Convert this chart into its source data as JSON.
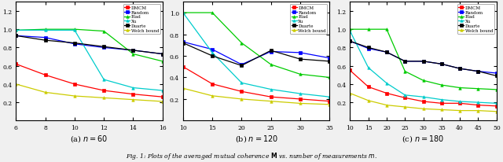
{
  "subplot_a": {
    "title": "(a) $n = 60$",
    "xlabel_vals": [
      6,
      8,
      10,
      12,
      14,
      16
    ],
    "xlim": [
      6,
      16
    ],
    "ylim": [
      0,
      1.3
    ],
    "yticks": [
      0.2,
      0.4,
      0.6,
      0.8,
      1.0,
      1.2
    ],
    "series": {
      "DMCM": {
        "x": [
          6,
          8,
          10,
          12,
          14,
          16
        ],
        "y": [
          0.62,
          0.5,
          0.4,
          0.33,
          0.29,
          0.26
        ],
        "color": "#ff0000",
        "marker": "s"
      },
      "Random": {
        "x": [
          6,
          8,
          10,
          12,
          14,
          16
        ],
        "y": [
          0.93,
          0.91,
          0.84,
          0.8,
          0.77,
          0.73
        ],
        "color": "#0000ff",
        "marker": "s"
      },
      "Elad": {
        "x": [
          6,
          8,
          10,
          12,
          14,
          16
        ],
        "y": [
          0.99,
          1.0,
          1.0,
          0.98,
          0.73,
          0.65
        ],
        "color": "#00cc00",
        "marker": "^"
      },
      "Xu": {
        "x": [
          6,
          8,
          10,
          12,
          14,
          16
        ],
        "y": [
          0.99,
          0.99,
          0.99,
          0.45,
          0.36,
          0.33
        ],
        "color": "#00cccc",
        "marker": "^"
      },
      "Duarte": {
        "x": [
          6,
          8,
          10,
          12,
          14,
          16
        ],
        "y": [
          0.93,
          0.88,
          0.85,
          0.81,
          0.77,
          0.73
        ],
        "color": "#000000",
        "marker": "s"
      },
      "Welch bound": {
        "x": [
          6,
          8,
          10,
          12,
          14,
          16
        ],
        "y": [
          0.4,
          0.31,
          0.27,
          0.25,
          0.23,
          0.21
        ],
        "color": "#cccc00",
        "marker": "^"
      }
    }
  },
  "subplot_b": {
    "title": "(b) $n = 120$",
    "xlabel_vals": [
      10,
      15,
      20,
      25,
      30,
      35
    ],
    "xlim": [
      10,
      35
    ],
    "ylim": [
      0,
      1.1
    ],
    "yticks": [
      0.2,
      0.4,
      0.6,
      0.8,
      1.0
    ],
    "series": {
      "DMCM": {
        "x": [
          10,
          15,
          20,
          25,
          30,
          35
        ],
        "y": [
          0.5,
          0.34,
          0.27,
          0.22,
          0.2,
          0.18
        ],
        "color": "#ff0000",
        "marker": "s"
      },
      "Random": {
        "x": [
          10,
          15,
          20,
          25,
          30,
          35
        ],
        "y": [
          0.73,
          0.66,
          0.52,
          0.64,
          0.63,
          0.58
        ],
        "color": "#0000ff",
        "marker": "s"
      },
      "Elad": {
        "x": [
          10,
          15,
          20,
          25,
          30,
          35
        ],
        "y": [
          1.0,
          1.0,
          0.72,
          0.52,
          0.43,
          0.4
        ],
        "color": "#00cc00",
        "marker": "^"
      },
      "Xu": {
        "x": [
          10,
          15,
          20,
          25,
          30,
          35
        ],
        "y": [
          1.0,
          0.63,
          0.35,
          0.29,
          0.25,
          0.22
        ],
        "color": "#00cccc",
        "marker": "^"
      },
      "Duarte": {
        "x": [
          10,
          15,
          20,
          25,
          30,
          35
        ],
        "y": [
          0.72,
          0.6,
          0.51,
          0.65,
          0.57,
          0.55
        ],
        "color": "#000000",
        "marker": "s"
      },
      "Welch bound": {
        "x": [
          10,
          15,
          20,
          25,
          30,
          35
        ],
        "y": [
          0.3,
          0.23,
          0.2,
          0.18,
          0.16,
          0.15
        ],
        "color": "#cccc00",
        "marker": "^"
      }
    }
  },
  "subplot_c": {
    "title": "(c) $n = 180$",
    "xlabel_vals": [
      10,
      15,
      20,
      25,
      30,
      35,
      40,
      45,
      50
    ],
    "xlim": [
      10,
      50
    ],
    "ylim": [
      0,
      1.3
    ],
    "yticks": [
      0.2,
      0.4,
      0.6,
      0.8,
      1.0,
      1.2
    ],
    "series": {
      "DMCM": {
        "x": [
          10,
          15,
          20,
          25,
          30,
          35,
          40,
          45,
          50
        ],
        "y": [
          0.55,
          0.37,
          0.3,
          0.25,
          0.21,
          0.19,
          0.19,
          0.17,
          0.16
        ],
        "color": "#ff0000",
        "marker": "s"
      },
      "Random": {
        "x": [
          10,
          15,
          20,
          25,
          30,
          35,
          40,
          45,
          50
        ],
        "y": [
          0.87,
          0.79,
          0.75,
          0.65,
          0.65,
          0.62,
          0.57,
          0.54,
          0.52
        ],
        "color": "#0000ff",
        "marker": "s"
      },
      "Elad": {
        "x": [
          10,
          15,
          20,
          25,
          30,
          35,
          40,
          45,
          50
        ],
        "y": [
          1.0,
          1.0,
          1.0,
          0.54,
          0.44,
          0.39,
          0.36,
          0.35,
          0.34
        ],
        "color": "#00cc00",
        "marker": "^"
      },
      "Xu": {
        "x": [
          10,
          15,
          20,
          25,
          30,
          35,
          40,
          45,
          50
        ],
        "y": [
          0.98,
          0.58,
          0.41,
          0.28,
          0.26,
          0.23,
          0.21,
          0.2,
          0.19
        ],
        "color": "#00cccc",
        "marker": "^"
      },
      "Duarte": {
        "x": [
          10,
          15,
          20,
          25,
          30,
          35,
          40,
          45,
          50
        ],
        "y": [
          0.87,
          0.8,
          0.75,
          0.65,
          0.65,
          0.62,
          0.57,
          0.54,
          0.49
        ],
        "color": "#000000",
        "marker": "s"
      },
      "Welch bound": {
        "x": [
          10,
          15,
          20,
          25,
          30,
          35,
          40,
          45,
          50
        ],
        "y": [
          0.3,
          0.22,
          0.17,
          0.15,
          0.13,
          0.12,
          0.11,
          0.11,
          0.1
        ],
        "color": "#cccc00",
        "marker": "^"
      }
    }
  },
  "legend_order": [
    "DMCM",
    "Random",
    "Elad",
    "Xu",
    "Duarte",
    "Welch bound"
  ],
  "fig_bg": "#f0f0f0",
  "ax_bg": "#ffffff"
}
